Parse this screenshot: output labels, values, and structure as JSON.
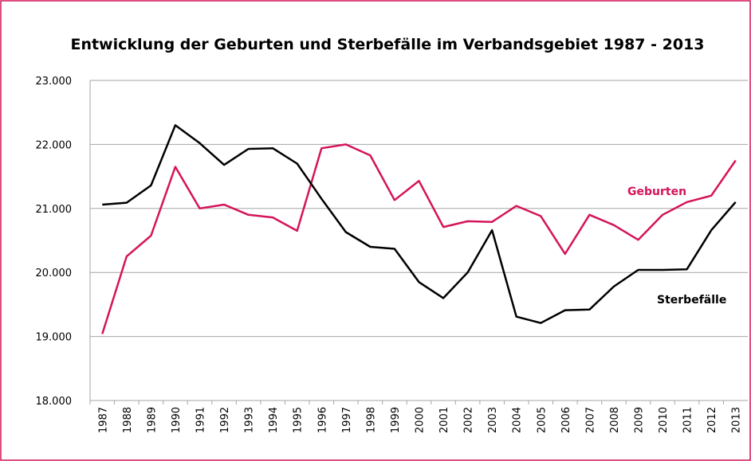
{
  "chart_data": {
    "type": "line",
    "title": "Entwicklung der Geburten und Sterbefälle im Verbandsgebiet 1987 - 2013",
    "categories": [
      "1987",
      "1988",
      "1989",
      "1990",
      "1991",
      "1992",
      "1993",
      "1994",
      "1995",
      "1996",
      "1997",
      "1998",
      "1999",
      "2000",
      "2001",
      "2002",
      "2003",
      "2004",
      "2005",
      "2006",
      "2007",
      "2008",
      "2009",
      "2010",
      "2011",
      "2012",
      "2013"
    ],
    "series": [
      {
        "name": "Geburten",
        "color": "#d4145a",
        "values": [
          19040,
          20250,
          20575,
          21650,
          21000,
          21060,
          20900,
          20860,
          20650,
          21940,
          22000,
          21830,
          21130,
          21430,
          20710,
          20800,
          20790,
          21040,
          20880,
          20290,
          20900,
          20740,
          20510,
          20900,
          21100,
          21200,
          21750
        ]
      },
      {
        "name": "Sterbefälle",
        "color": "#000000",
        "values": [
          21060,
          21090,
          21360,
          22300,
          22020,
          21680,
          21930,
          21940,
          21700,
          21150,
          20630,
          20400,
          20370,
          19850,
          19600,
          20000,
          20660,
          19310,
          19210,
          19410,
          19420,
          19780,
          20040,
          20040,
          20050,
          20660,
          21100
        ]
      }
    ],
    "ylim": [
      18000,
      23000
    ],
    "yticks": [
      {
        "value": 18000,
        "label": "18.000"
      },
      {
        "value": 19000,
        "label": "19.000"
      },
      {
        "value": 20000,
        "label": "20.000"
      },
      {
        "value": 21000,
        "label": "21.000"
      },
      {
        "value": 22000,
        "label": "22.000"
      },
      {
        "value": 23000,
        "label": "23.000"
      }
    ],
    "grid": true
  }
}
